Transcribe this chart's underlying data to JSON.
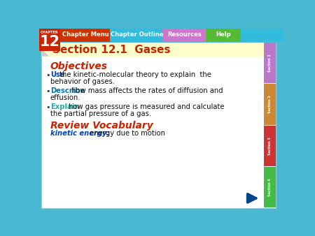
{
  "bg_color": "#4ab8d0",
  "main_bg": "#ffffff",
  "header_bg": "#ffffcc",
  "title_text": "Section 12.1  Gases",
  "title_color": "#cc2200",
  "objectives_text": "Objectives",
  "objectives_color": "#cc2200",
  "bullet1_keyword": "Use",
  "bullet1_keyword_color": "#0044bb",
  "bullet1_rest": " the kinetic-molecular theory to explain  the",
  "bullet1_line2": "behavior of gases.",
  "bullet2_keyword": "Describe",
  "bullet2_keyword_color": "#0077bb",
  "bullet2_rest": " how mass affects the rates of diffusion and",
  "bullet2_line2": "effusion.",
  "bullet3_keyword": "Explain",
  "bullet3_keyword_color": "#22aaaa",
  "bullet3_rest": " how gas pressure is measured and calculate",
  "bullet3_line2": "the partial pressure of a gas.",
  "review_text": "Review Vocabulary",
  "review_color": "#cc2200",
  "vocab_keyword": "kinetic energy:",
  "vocab_keyword_color": "#0044bb",
  "vocab_rest": "  energy due to motion",
  "nav_labels": [
    "Chapter Menu",
    "Chapter Outline",
    "Resources",
    "Help"
  ],
  "nav_colors": [
    "#cc3300",
    "#33bbdd",
    "#cc77cc",
    "#55bb33"
  ],
  "chapter_box_color": "#cc2200",
  "chapter_number": "12",
  "side_tab_colors": [
    "#bb77cc",
    "#cc8833",
    "#cc3333",
    "#44bb44"
  ],
  "side_tab_labels": [
    "Section 1",
    "Section 2",
    "Section 3",
    "Section 4"
  ],
  "arrow_color": "#004488",
  "top_bar_color": "#33bbdd"
}
